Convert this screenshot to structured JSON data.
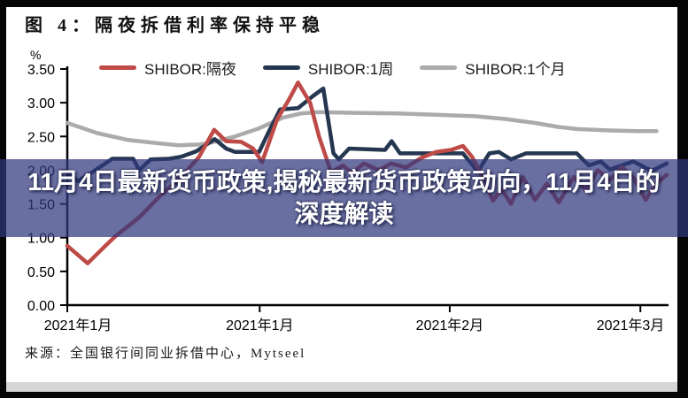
{
  "figure": {
    "title": "图 4：隔夜拆借利率保持平稳",
    "unit_label": "%",
    "source": "来源：全国银行间同业拆借中心，Mytseel"
  },
  "overlay": {
    "text": "11月4日最新货币政策,揭秘最新货币政策动向，11月4日的深度解读"
  },
  "colors": {
    "overlay_bg": "rgba(48,55,125,0.72)",
    "overlay_text": "#ffffff",
    "axis": "#000000"
  },
  "chart_data": {
    "type": "line",
    "title": "隔夜拆借利率保持平稳",
    "xlabel": "",
    "ylabel": "%",
    "ylim": [
      0,
      3.5
    ],
    "yticks": [
      3.5,
      3.0,
      2.5,
      2.0,
      1.5,
      1.0,
      0.5,
      0.0
    ],
    "xticks": [
      {
        "label": "2021年1月",
        "pos": 0
      },
      {
        "label": "2021年1月",
        "pos": 32.1
      },
      {
        "label": "2021年2月",
        "pos": 63.8
      },
      {
        "label": "2021年3月",
        "pos": 95.6
      }
    ],
    "grid": false,
    "legend_position": "top",
    "x_unit": "percent position along time axis (early Jan 2021 to early Mar 2021)",
    "series": [
      {
        "name": "SHIBOR:隔夜",
        "color": "#BE4B48",
        "points": [
          [
            0,
            0.88
          ],
          [
            3.4,
            0.62
          ],
          [
            6.6,
            0.9
          ],
          [
            8,
            1.02
          ],
          [
            12,
            1.3
          ],
          [
            15.5,
            1.62
          ],
          [
            19,
            1.9
          ],
          [
            22,
            2.2
          ],
          [
            24.5,
            2.6
          ],
          [
            26.5,
            2.43
          ],
          [
            29,
            2.42
          ],
          [
            31,
            2.32
          ],
          [
            32.5,
            2.12
          ],
          [
            35,
            2.75
          ],
          [
            37,
            3.05
          ],
          [
            38.5,
            3.3
          ],
          [
            40.5,
            3.0
          ],
          [
            42,
            2.5
          ],
          [
            44,
            1.97
          ],
          [
            46,
            2.07
          ],
          [
            47.5,
            1.96
          ],
          [
            49.5,
            2.1
          ],
          [
            52,
            2.0
          ],
          [
            54,
            2.1
          ],
          [
            56.5,
            2.04
          ],
          [
            59,
            2.18
          ],
          [
            61.5,
            2.27
          ],
          [
            64,
            2.3
          ],
          [
            66,
            2.36
          ],
          [
            67.5,
            2.2
          ],
          [
            69,
            1.95
          ],
          [
            71,
            1.55
          ],
          [
            72.5,
            1.72
          ],
          [
            74,
            1.5
          ],
          [
            76,
            1.9
          ],
          [
            78,
            1.56
          ],
          [
            80,
            1.8
          ],
          [
            82,
            1.52
          ],
          [
            84.5,
            1.9
          ],
          [
            86.5,
            1.7
          ],
          [
            88.5,
            2.0
          ],
          [
            90.5,
            1.85
          ],
          [
            92.5,
            2.05
          ],
          [
            94.5,
            1.88
          ],
          [
            96.5,
            1.56
          ],
          [
            98,
            1.78
          ],
          [
            100,
            1.93
          ]
        ]
      },
      {
        "name": "SHIBOR:1周",
        "color": "#253750",
        "points": [
          [
            0,
            1.95
          ],
          [
            1.8,
            1.84
          ],
          [
            4,
            1.96
          ],
          [
            6,
            2.08
          ],
          [
            7.5,
            2.17
          ],
          [
            11,
            2.17
          ],
          [
            12,
            2.0
          ],
          [
            13.9,
            2.16
          ],
          [
            17,
            2.17
          ],
          [
            19,
            2.2
          ],
          [
            21.5,
            2.28
          ],
          [
            24.6,
            2.46
          ],
          [
            26.5,
            2.32
          ],
          [
            28,
            2.27
          ],
          [
            32,
            2.27
          ],
          [
            33.5,
            2.55
          ],
          [
            35.5,
            2.9
          ],
          [
            38.5,
            2.92
          ],
          [
            41,
            3.1
          ],
          [
            42.7,
            3.21
          ],
          [
            44.4,
            2.25
          ],
          [
            45.3,
            2.16
          ],
          [
            47,
            2.32
          ],
          [
            50,
            2.31
          ],
          [
            53,
            2.3
          ],
          [
            54.1,
            2.43
          ],
          [
            55.5,
            2.25
          ],
          [
            60,
            2.25
          ],
          [
            64,
            2.25
          ],
          [
            66,
            2.25
          ],
          [
            68.5,
            1.98
          ],
          [
            70.4,
            2.25
          ],
          [
            72,
            2.27
          ],
          [
            74,
            2.16
          ],
          [
            76.5,
            2.25
          ],
          [
            80,
            2.25
          ],
          [
            85,
            2.25
          ],
          [
            87,
            2.07
          ],
          [
            89,
            2.13
          ],
          [
            90.5,
            2.01
          ],
          [
            94.4,
            2.13
          ],
          [
            97.5,
            1.99
          ],
          [
            100,
            2.1
          ]
        ]
      },
      {
        "name": "SHIBOR:1个月",
        "color": "#ABABAB",
        "points": [
          [
            0,
            2.7
          ],
          [
            5,
            2.55
          ],
          [
            10,
            2.45
          ],
          [
            15,
            2.4
          ],
          [
            18.5,
            2.37
          ],
          [
            22,
            2.38
          ],
          [
            24,
            2.41
          ],
          [
            28,
            2.5
          ],
          [
            32,
            2.62
          ],
          [
            36,
            2.78
          ],
          [
            39,
            2.84
          ],
          [
            42,
            2.86
          ],
          [
            48,
            2.85
          ],
          [
            55,
            2.84
          ],
          [
            62,
            2.82
          ],
          [
            68,
            2.8
          ],
          [
            73,
            2.76
          ],
          [
            78,
            2.7
          ],
          [
            82,
            2.64
          ],
          [
            85,
            2.61
          ],
          [
            90,
            2.59
          ],
          [
            95,
            2.58
          ],
          [
            98.3,
            2.58
          ]
        ]
      }
    ]
  }
}
